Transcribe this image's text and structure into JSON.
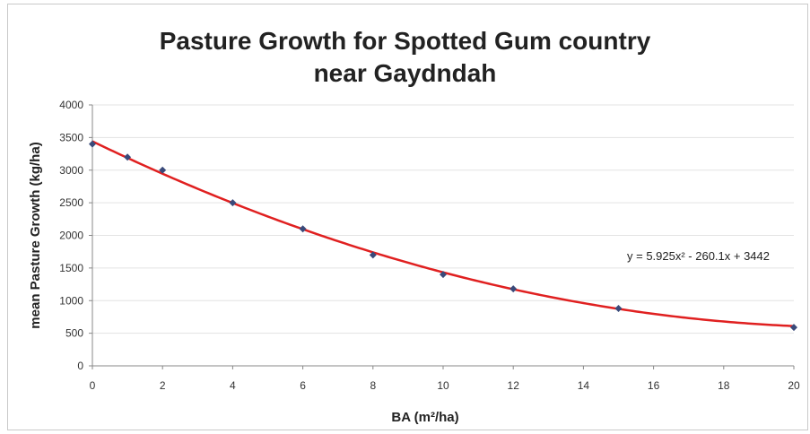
{
  "chart_data": {
    "type": "scatter",
    "title_line1": "Pasture Growth for Spotted Gum country",
    "title_line2": "near Gaydndah",
    "xlabel": "BA (m²/ha)",
    "ylabel": "mean Pasture Growth (kg/ha)",
    "xlim": [
      0,
      20
    ],
    "ylim": [
      0,
      4000
    ],
    "x_ticks": [
      0,
      2,
      4,
      6,
      8,
      10,
      12,
      14,
      16,
      18,
      20
    ],
    "y_ticks": [
      0,
      500,
      1000,
      1500,
      2000,
      2500,
      3000,
      3500,
      4000
    ],
    "grid": "horizontal",
    "points": [
      {
        "x": 0,
        "y": 3400
      },
      {
        "x": 1,
        "y": 3200
      },
      {
        "x": 2,
        "y": 3000
      },
      {
        "x": 4,
        "y": 2500
      },
      {
        "x": 6,
        "y": 2100
      },
      {
        "x": 8,
        "y": 1700
      },
      {
        "x": 10,
        "y": 1400
      },
      {
        "x": 12,
        "y": 1180
      },
      {
        "x": 15,
        "y": 880
      },
      {
        "x": 20,
        "y": 590
      }
    ],
    "trendline": {
      "type": "polynomial",
      "coefficients": {
        "a": 5.925,
        "b": -260.1,
        "c": 3442
      },
      "equation_label": "y = 5.925x² - 260.1x + 3442",
      "color": "#e02020"
    },
    "marker_color": "#3a4a7a"
  }
}
